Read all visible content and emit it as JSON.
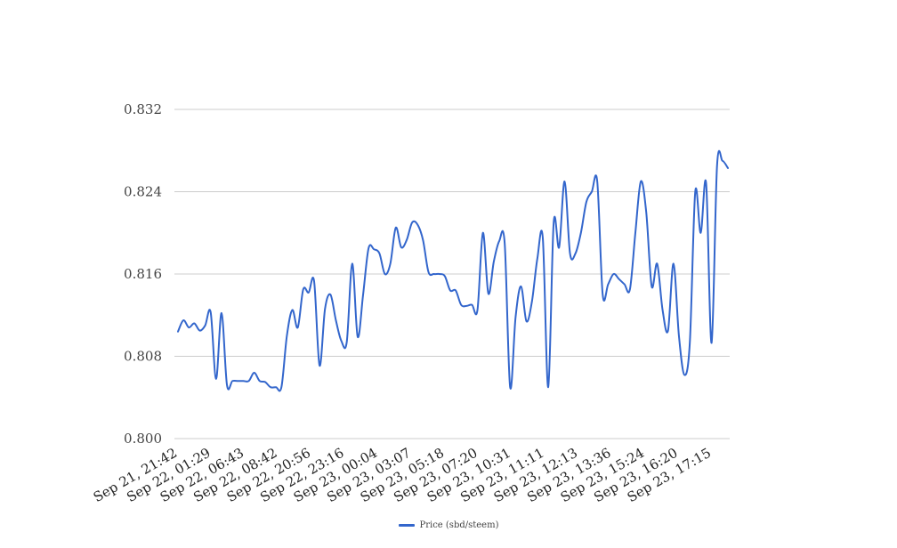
{
  "chart_data": {
    "type": "line",
    "title": "",
    "xlabel": "",
    "ylabel": "",
    "ylim": [
      0.8,
      0.832
    ],
    "y_ticks": [
      "0.800",
      "0.808",
      "0.816",
      "0.824",
      "0.832"
    ],
    "grid": "horizontal",
    "legend_position": "bottom",
    "x_tick_labels": [
      "Sep 21, 21:42",
      "Sep 22, 01:29",
      "Sep 22, 06:43",
      "Sep 22, 08:42",
      "Sep 22, 20:56",
      "Sep 22, 23:16",
      "Sep 23, 00:04",
      "Sep 23, 03:07",
      "Sep 23, 05:18",
      "Sep 23, 07:20",
      "Sep 23, 10:31",
      "Sep 23, 11:11",
      "Sep 23, 12:13",
      "Sep 23, 13:36",
      "Sep 23, 15:24",
      "Sep 23, 16:20",
      "Sep 23, 17:15"
    ],
    "series": [
      {
        "name": "Price (sbd/steem)",
        "color": "#3366cc",
        "values": [
          0.8104,
          0.8115,
          0.8108,
          0.8112,
          0.8105,
          0.811,
          0.8123,
          0.8058,
          0.8122,
          0.8052,
          0.8056,
          0.8056,
          0.8056,
          0.8056,
          0.8064,
          0.8056,
          0.8055,
          0.805,
          0.805,
          0.805,
          0.81,
          0.8125,
          0.8108,
          0.8145,
          0.8142,
          0.8153,
          0.8071,
          0.8126,
          0.814,
          0.8115,
          0.8095,
          0.8094,
          0.817,
          0.8099,
          0.814,
          0.8185,
          0.8184,
          0.818,
          0.816,
          0.817,
          0.8205,
          0.8186,
          0.8193,
          0.821,
          0.8208,
          0.8193,
          0.8162,
          0.816,
          0.816,
          0.8158,
          0.8144,
          0.8144,
          0.813,
          0.8129,
          0.813,
          0.8125,
          0.82,
          0.8141,
          0.8172,
          0.8192,
          0.819,
          0.805,
          0.8118,
          0.8148,
          0.8114,
          0.8133,
          0.8175,
          0.8195,
          0.805,
          0.821,
          0.8186,
          0.825,
          0.818,
          0.818,
          0.82,
          0.823,
          0.824,
          0.825,
          0.814,
          0.815,
          0.816,
          0.8155,
          0.815,
          0.8145,
          0.82,
          0.825,
          0.822,
          0.8148,
          0.817,
          0.8125,
          0.8105,
          0.817,
          0.81,
          0.8062,
          0.8093,
          0.824,
          0.82,
          0.8248,
          0.8093,
          0.8265,
          0.827,
          0.8263
        ]
      }
    ]
  }
}
